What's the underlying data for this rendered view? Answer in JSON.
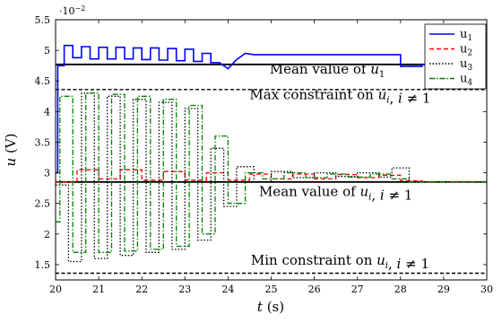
{
  "chart_data": {
    "type": "line",
    "xlabel": "t (s)",
    "ylabel": "u (V)",
    "xlim": [
      20,
      30
    ],
    "ylim": [
      1.25,
      5.5
    ],
    "y_multiplier": "·10^−2",
    "grid": false,
    "legend_placement": "top-right",
    "xticks": [
      20,
      21,
      22,
      23,
      24,
      25,
      26,
      27,
      28,
      29,
      30
    ],
    "yticks": [
      1.5,
      2,
      2.5,
      3,
      3.5,
      4,
      4.5,
      5,
      5.5
    ],
    "legend": [
      {
        "label": "u",
        "sub": "1",
        "color": "#0000ff",
        "dash": "solid"
      },
      {
        "label": "u",
        "sub": "2",
        "color": "#ff0000",
        "dash": "dashed"
      },
      {
        "label": "u",
        "sub": "3",
        "color": "#000000",
        "dash": "dotted"
      },
      {
        "label": "u",
        "sub": "4",
        "color": "#008000",
        "dash": "dashdot"
      }
    ],
    "reference_lines": [
      {
        "y": 4.77,
        "color": "#000000",
        "style": "solid"
      },
      {
        "y": 2.85,
        "color": "#000000",
        "style": "solid"
      },
      {
        "y": 4.36,
        "color": "#000000",
        "style": "dashed"
      },
      {
        "y": 1.36,
        "color": "#000000",
        "style": "dashed"
      }
    ],
    "annotations": [
      {
        "text": "Mean value of u1",
        "x": 26.3,
        "y": 4.62
      },
      {
        "text": "Max constraint on ui, i ≠ 1",
        "x": 26.6,
        "y": 4.2
      },
      {
        "text": "Mean value of ui, i ≠ 1",
        "x": 26.5,
        "y": 2.62
      },
      {
        "text": "Min constraint on ui, i ≠ 1",
        "x": 26.6,
        "y": 1.5
      }
    ],
    "series": [
      {
        "id": "u1",
        "color": "#0000ff",
        "dash": "solid",
        "x": [
          20,
          20.05,
          20.05,
          20.2,
          20.2,
          20.4,
          20.4,
          20.6,
          20.6,
          20.8,
          20.8,
          21.0,
          21.0,
          21.2,
          21.2,
          21.4,
          21.4,
          21.6,
          21.6,
          21.8,
          21.8,
          22.0,
          22.0,
          22.2,
          22.2,
          22.4,
          22.4,
          22.6,
          22.6,
          22.8,
          22.8,
          23.0,
          23.0,
          23.2,
          23.2,
          23.4,
          23.4,
          23.6,
          23.6,
          23.8,
          23.8,
          24.0,
          24.2,
          24.4,
          24.6,
          28.0,
          28.0,
          28.5,
          28.5,
          30
        ],
        "y": [
          3.0,
          3.0,
          4.75,
          4.75,
          5.08,
          5.08,
          4.88,
          4.88,
          5.06,
          5.06,
          4.86,
          4.86,
          5.05,
          5.05,
          4.86,
          4.86,
          5.05,
          5.05,
          4.86,
          4.86,
          5.04,
          5.04,
          4.85,
          4.85,
          5.04,
          5.04,
          4.84,
          4.84,
          5.03,
          5.03,
          4.83,
          4.83,
          5.02,
          5.02,
          4.82,
          4.82,
          4.95,
          4.95,
          4.8,
          4.8,
          4.8,
          4.7,
          4.85,
          4.95,
          4.93,
          4.93,
          4.74,
          4.74,
          4.77,
          4.77
        ]
      },
      {
        "id": "u2",
        "color": "#ff0000",
        "dash": "dashed",
        "x": [
          20,
          20.5,
          20.5,
          21.0,
          21.0,
          21.5,
          21.5,
          22.0,
          22.0,
          22.5,
          22.5,
          23.0,
          23.0,
          23.5,
          23.5,
          24.0,
          24.0,
          24.5,
          24.5,
          25.0,
          25.0,
          25.5,
          25.5,
          26.0,
          26.0,
          26.5,
          26.5,
          27.0,
          27.0,
          27.5,
          27.5,
          28.0,
          28.0,
          28.5,
          28.5,
          30
        ],
        "y": [
          2.85,
          2.85,
          3.05,
          3.05,
          2.9,
          2.9,
          3.05,
          3.05,
          2.88,
          2.88,
          3.02,
          3.02,
          2.88,
          2.88,
          3.0,
          3.0,
          2.88,
          2.88,
          2.98,
          2.98,
          2.9,
          2.9,
          2.98,
          2.98,
          2.9,
          2.9,
          2.97,
          2.97,
          2.92,
          2.92,
          2.96,
          2.96,
          2.87,
          2.87,
          2.85,
          2.85
        ]
      },
      {
        "id": "u3",
        "color": "#000000",
        "dash": "dotted",
        "x": [
          20,
          20.3,
          20.3,
          20.6,
          20.6,
          20.9,
          20.9,
          21.2,
          21.2,
          21.5,
          21.5,
          21.8,
          21.8,
          22.1,
          22.1,
          22.4,
          22.4,
          22.7,
          22.7,
          23.0,
          23.0,
          23.3,
          23.3,
          23.6,
          23.6,
          23.9,
          23.9,
          24.2,
          24.2,
          24.6,
          24.6,
          25.0,
          25.0,
          25.5,
          25.5,
          26.0,
          26.0,
          26.5,
          26.5,
          27.0,
          27.0,
          27.5,
          27.5,
          27.8,
          27.8,
          28.2,
          28.2,
          30
        ],
        "y": [
          2.8,
          2.8,
          1.55,
          1.55,
          4.3,
          4.3,
          1.6,
          1.6,
          4.25,
          4.25,
          1.65,
          1.65,
          4.2,
          4.2,
          1.7,
          1.7,
          4.15,
          4.15,
          1.75,
          1.75,
          4.05,
          4.05,
          1.9,
          1.9,
          3.4,
          3.4,
          2.45,
          2.45,
          3.1,
          3.1,
          2.85,
          2.85,
          3.02,
          3.02,
          2.92,
          2.92,
          3.0,
          3.0,
          2.94,
          2.94,
          3.0,
          3.0,
          2.93,
          2.93,
          3.08,
          3.08,
          2.85,
          2.85
        ]
      },
      {
        "id": "u4",
        "color": "#008000",
        "dash": "dashdot",
        "x": [
          20,
          20.1,
          20.1,
          20.4,
          20.4,
          20.7,
          20.7,
          21.0,
          21.0,
          21.3,
          21.3,
          21.6,
          21.6,
          21.9,
          21.9,
          22.2,
          22.2,
          22.5,
          22.5,
          22.8,
          22.8,
          23.1,
          23.1,
          23.4,
          23.4,
          23.7,
          23.7,
          24.0,
          24.0,
          24.4,
          24.4,
          24.8,
          24.8,
          25.3,
          25.3,
          25.8,
          25.8,
          26.3,
          26.3,
          26.8,
          26.8,
          27.3,
          27.3,
          27.8,
          27.8,
          28.2,
          28.2,
          30
        ],
        "y": [
          2.2,
          2.2,
          4.25,
          4.25,
          1.7,
          1.7,
          4.3,
          4.3,
          1.7,
          1.7,
          4.28,
          4.28,
          1.72,
          1.72,
          4.25,
          4.25,
          1.75,
          1.75,
          4.2,
          4.2,
          1.8,
          1.8,
          4.1,
          4.1,
          2.0,
          2.0,
          3.6,
          3.6,
          2.5,
          2.5,
          3.0,
          3.0,
          2.9,
          2.9,
          3.0,
          3.0,
          2.92,
          2.92,
          2.98,
          2.98,
          2.93,
          2.93,
          2.98,
          2.98,
          2.9,
          2.9,
          2.85,
          2.85
        ]
      }
    ]
  }
}
